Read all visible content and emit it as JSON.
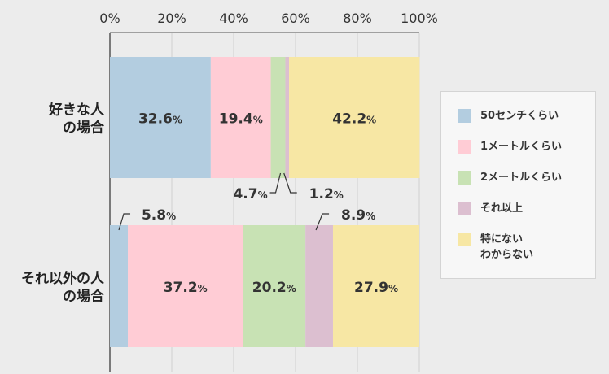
{
  "colors": {
    "background": "#ececec",
    "axis": "#555555",
    "grid": "#cfcfcf",
    "text": "#333333"
  },
  "chart_data": {
    "type": "bar",
    "orientation": "horizontal",
    "stacked": true,
    "percent_suffix": "%",
    "xlim": [
      0,
      100
    ],
    "xticks": [
      "0%",
      "20%",
      "40%",
      "60%",
      "80%",
      "100%"
    ],
    "xtick_values": [
      0,
      20,
      40,
      60,
      80,
      100
    ],
    "categories": [
      "好きな人\nの場合",
      "それ以外の人\nの場合"
    ],
    "series": [
      {
        "name": "50センチくらい",
        "color": "#b3cde0",
        "values": [
          32.6,
          5.8
        ]
      },
      {
        "name": "1メートルくらい",
        "color": "#ffccd5",
        "values": [
          19.4,
          37.2
        ]
      },
      {
        "name": "2メートルくらい",
        "color": "#c8e2b4",
        "values": [
          4.7,
          20.2
        ]
      },
      {
        "name": "それ以上",
        "color": "#dcbfd0",
        "values": [
          1.2,
          8.9
        ]
      },
      {
        "name": "特にない\nわからない",
        "color": "#f7e7a4",
        "values": [
          42.2,
          27.9
        ]
      }
    ],
    "data_labels": [
      [
        "32.6",
        "19.4",
        "4.7",
        "1.2",
        "42.2"
      ],
      [
        "5.8",
        "37.2",
        "20.2",
        "8.9",
        "27.9"
      ]
    ],
    "legend_position": "right",
    "grid": true
  }
}
